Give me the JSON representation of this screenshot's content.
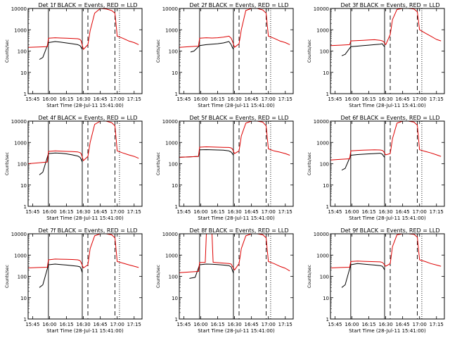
{
  "figure": {
    "xlabel": "Start Time (28-Jul-11 15:41:00)",
    "ylabel": "Counts/sec",
    "x_ticks": [
      "15:45",
      "16:00",
      "16:15",
      "16:30",
      "16:45",
      "17:00",
      "17:15"
    ],
    "y_ticks": [
      "1",
      "10",
      "100",
      "1000",
      "10000"
    ],
    "colors": {
      "events": "#000000",
      "lld": "#dd0000",
      "frame": "#000000"
    }
  },
  "chart_data": [
    {
      "type": "line",
      "title": "Det 1f BLACK = Events, RED = LLD",
      "xlabel": "Start Time (28-Jul-11 15:41:00)",
      "ylabel": "Counts/sec",
      "xlim": [
        "15:41",
        "17:22"
      ],
      "ylim": [
        1,
        10000
      ],
      "yscale": "log",
      "vlines_solid": [
        "15:59",
        "16:29"
      ],
      "vlines_dashed": [
        "16:34",
        "16:58"
      ],
      "vlines_dotted": [
        "17:02"
      ],
      "series": [
        {
          "name": "Events",
          "color": "#000000",
          "x": [
            "15:51",
            "15:54",
            "15:59",
            "16:05",
            "16:10",
            "16:15",
            "16:20",
            "16:25",
            "16:27",
            "16:28",
            "16:29"
          ],
          "y": [
            40,
            50,
            250,
            280,
            260,
            240,
            220,
            200,
            180,
            150,
            120
          ]
        },
        {
          "name": "LLD",
          "color": "#dd0000",
          "x": [
            "15:41",
            "15:50",
            "15:58",
            "15:59",
            "16:05",
            "16:10",
            "16:15",
            "16:20",
            "16:25",
            "16:27",
            "16:28",
            "16:30",
            "16:34",
            "16:36",
            "16:40",
            "16:45",
            "16:50",
            "16:55",
            "16:58",
            "17:00",
            "17:05",
            "17:10",
            "17:15",
            "17:19"
          ],
          "y": [
            150,
            155,
            160,
            400,
            420,
            410,
            400,
            390,
            380,
            350,
            300,
            120,
            200,
            900,
            6000,
            10000,
            9500,
            8000,
            6000,
            500,
            400,
            300,
            250,
            200
          ]
        }
      ]
    },
    {
      "type": "line",
      "title": "Det 2f BLACK = Events, RED = LLD",
      "xlabel": "Start Time (28-Jul-11 15:41:00)",
      "ylabel": "Counts/sec",
      "xlim": [
        "15:41",
        "17:22"
      ],
      "ylim": [
        1,
        10000
      ],
      "yscale": "log",
      "vlines_solid": [
        "15:59",
        "16:29"
      ],
      "vlines_dashed": [
        "16:34",
        "16:58"
      ],
      "vlines_dotted": [
        "17:02"
      ],
      "series": [
        {
          "name": "Events",
          "color": "#000000",
          "x": [
            "15:51",
            "15:54",
            "15:59",
            "16:05",
            "16:10",
            "16:15",
            "16:20",
            "16:25",
            "16:27",
            "16:28",
            "16:29"
          ],
          "y": [
            90,
            100,
            180,
            200,
            210,
            220,
            240,
            280,
            200,
            150,
            120
          ]
        },
        {
          "name": "LLD",
          "color": "#dd0000",
          "x": [
            "15:41",
            "15:50",
            "15:58",
            "15:59",
            "16:05",
            "16:10",
            "16:15",
            "16:20",
            "16:25",
            "16:27",
            "16:28",
            "16:30",
            "16:34",
            "16:36",
            "16:40",
            "16:45",
            "16:50",
            "16:55",
            "16:58",
            "17:00",
            "17:05",
            "17:10",
            "17:15",
            "17:19"
          ],
          "y": [
            150,
            160,
            170,
            400,
            420,
            410,
            420,
            450,
            500,
            400,
            300,
            150,
            220,
            1000,
            8000,
            10000,
            10000,
            8500,
            6000,
            500,
            400,
            300,
            250,
            200
          ]
        }
      ]
    },
    {
      "type": "line",
      "title": "Det 3f BLACK = Events, RED = LLD",
      "xlabel": "Start Time (28-Jul-11 15:41:00)",
      "ylabel": "Counts/sec",
      "xlim": [
        "15:41",
        "17:22"
      ],
      "ylim": [
        1,
        10000
      ],
      "yscale": "log",
      "vlines_solid": [
        "15:59",
        "16:29"
      ],
      "vlines_dashed": [
        "16:34",
        "16:58"
      ],
      "vlines_dotted": [
        "17:02"
      ],
      "series": [
        {
          "name": "Events",
          "color": "#000000",
          "x": [
            "15:51",
            "15:54",
            "15:59",
            "16:05",
            "16:10",
            "16:15",
            "16:20",
            "16:25",
            "16:27",
            "16:28",
            "16:29"
          ],
          "y": [
            60,
            70,
            160,
            170,
            180,
            190,
            200,
            210,
            220,
            180,
            160
          ]
        },
        {
          "name": "LLD",
          "color": "#dd0000",
          "x": [
            "15:41",
            "15:50",
            "15:58",
            "15:59",
            "16:05",
            "16:10",
            "16:15",
            "16:20",
            "16:25",
            "16:27",
            "16:28",
            "16:30",
            "16:34",
            "16:36",
            "16:40",
            "16:45",
            "16:50",
            "16:55",
            "16:58",
            "17:00",
            "17:05",
            "17:10",
            "17:15",
            "17:19"
          ],
          "y": [
            180,
            190,
            200,
            300,
            310,
            320,
            330,
            340,
            320,
            300,
            280,
            200,
            600,
            3000,
            9000,
            10000,
            10000,
            9500,
            7000,
            1000,
            700,
            500,
            350,
            300
          ]
        }
      ]
    },
    {
      "type": "line",
      "title": "Det 4f BLACK = Events, RED = LLD",
      "xlabel": "Start Time (28-Jul-11 15:41:00)",
      "ylabel": "Counts/sec",
      "xlim": [
        "15:41",
        "17:22"
      ],
      "ylim": [
        1,
        10000
      ],
      "yscale": "log",
      "vlines_solid": [
        "15:59",
        "16:29"
      ],
      "vlines_dashed": [
        "16:34",
        "16:58"
      ],
      "vlines_dotted": [
        "17:02"
      ],
      "series": [
        {
          "name": "Events",
          "color": "#000000",
          "x": [
            "15:51",
            "15:54",
            "15:59",
            "16:05",
            "16:10",
            "16:15",
            "16:20",
            "16:25",
            "16:27",
            "16:28",
            "16:29"
          ],
          "y": [
            30,
            40,
            300,
            320,
            310,
            290,
            260,
            230,
            200,
            160,
            120
          ]
        },
        {
          "name": "LLD",
          "color": "#dd0000",
          "x": [
            "15:41",
            "15:50",
            "15:58",
            "15:59",
            "16:05",
            "16:10",
            "16:15",
            "16:20",
            "16:25",
            "16:27",
            "16:28",
            "16:30",
            "16:34",
            "16:36",
            "16:40",
            "16:45",
            "16:50",
            "16:55",
            "16:58",
            "17:00",
            "17:05",
            "17:10",
            "17:15",
            "17:19"
          ],
          "y": [
            100,
            110,
            120,
            380,
            400,
            390,
            380,
            370,
            360,
            330,
            300,
            140,
            220,
            1000,
            7000,
            10000,
            10000,
            8500,
            6000,
            400,
            320,
            260,
            220,
            180
          ]
        }
      ]
    },
    {
      "type": "line",
      "title": "Det 5f BLACK = Events, RED = LLD",
      "xlabel": "Start Time (28-Jul-11 15:41:00)",
      "ylabel": "Counts/sec",
      "xlim": [
        "15:41",
        "17:22"
      ],
      "ylim": [
        1,
        10000
      ],
      "yscale": "log",
      "vlines_solid": [
        "15:59",
        "16:29"
      ],
      "vlines_dashed": [
        "16:34",
        "16:58"
      ],
      "vlines_dotted": [
        "17:02"
      ],
      "series": [
        {
          "name": "Events",
          "color": "#000000",
          "x": [
            "15:41",
            "15:50",
            "15:58",
            "15:59",
            "16:05",
            "16:10",
            "16:15",
            "16:20",
            "16:25",
            "16:27",
            "16:28",
            "16:29"
          ],
          "y": [
            200,
            210,
            220,
            450,
            460,
            450,
            440,
            430,
            400,
            350,
            300,
            250
          ]
        },
        {
          "name": "LLD",
          "color": "#dd0000",
          "x": [
            "15:41",
            "15:50",
            "15:58",
            "15:59",
            "16:05",
            "16:10",
            "16:15",
            "16:20",
            "16:25",
            "16:27",
            "16:28",
            "16:30",
            "16:34",
            "16:36",
            "16:40",
            "16:45",
            "16:50",
            "16:55",
            "16:58",
            "17:00",
            "17:05",
            "17:10",
            "17:15",
            "17:19"
          ],
          "y": [
            200,
            210,
            220,
            600,
            620,
            610,
            600,
            590,
            580,
            550,
            500,
            300,
            400,
            2000,
            8000,
            10000,
            10000,
            9000,
            6000,
            500,
            400,
            350,
            300,
            250
          ]
        }
      ]
    },
    {
      "type": "line",
      "title": "Det 6f BLACK = Events, RED = LLD",
      "xlabel": "Start Time (28-Jul-11 15:41:00)",
      "ylabel": "Counts/sec",
      "xlim": [
        "15:41",
        "17:22"
      ],
      "ylim": [
        1,
        10000
      ],
      "yscale": "log",
      "vlines_solid": [
        "15:59",
        "16:29"
      ],
      "vlines_dashed": [
        "16:34",
        "16:58"
      ],
      "vlines_dotted": [
        "17:02"
      ],
      "series": [
        {
          "name": "Events",
          "color": "#000000",
          "x": [
            "15:51",
            "15:54",
            "15:59",
            "16:05",
            "16:10",
            "16:15",
            "16:20",
            "16:25",
            "16:27",
            "16:28",
            "16:29"
          ],
          "y": [
            50,
            60,
            250,
            270,
            280,
            290,
            300,
            310,
            280,
            230,
            200
          ]
        },
        {
          "name": "LLD",
          "color": "#dd0000",
          "x": [
            "15:41",
            "15:50",
            "15:58",
            "15:59",
            "16:05",
            "16:10",
            "16:15",
            "16:20",
            "16:25",
            "16:27",
            "16:28",
            "16:30",
            "16:34",
            "16:36",
            "16:40",
            "16:45",
            "16:50",
            "16:55",
            "16:58",
            "17:00",
            "17:05",
            "17:10",
            "17:15",
            "17:19"
          ],
          "y": [
            150,
            160,
            170,
            400,
            420,
            430,
            440,
            450,
            440,
            420,
            380,
            260,
            300,
            1500,
            8000,
            10000,
            10000,
            9000,
            6500,
            450,
            380,
            320,
            260,
            220
          ]
        }
      ]
    },
    {
      "type": "line",
      "title": "Det 7f BLACK = Events, RED = LLD",
      "xlabel": "Start Time (28-Jul-11 15:41:00)",
      "ylabel": "Counts/sec",
      "xlim": [
        "15:41",
        "17:22"
      ],
      "ylim": [
        1,
        10000
      ],
      "yscale": "log",
      "vlines_solid": [
        "15:59",
        "16:29"
      ],
      "vlines_dashed": [
        "16:34",
        "16:58"
      ],
      "vlines_dotted": [
        "17:02"
      ],
      "series": [
        {
          "name": "Events",
          "color": "#000000",
          "x": [
            "15:51",
            "15:54",
            "15:59",
            "16:05",
            "16:10",
            "16:15",
            "16:20",
            "16:25",
            "16:27",
            "16:28",
            "16:29"
          ],
          "y": [
            30,
            40,
            350,
            380,
            360,
            340,
            320,
            300,
            280,
            220,
            150
          ]
        },
        {
          "name": "LLD",
          "color": "#dd0000",
          "x": [
            "15:41",
            "15:50",
            "15:58",
            "15:59",
            "16:05",
            "16:10",
            "16:15",
            "16:20",
            "16:25",
            "16:27",
            "16:28",
            "16:30",
            "16:34",
            "16:36",
            "16:40",
            "16:45",
            "16:50",
            "16:55",
            "16:58",
            "17:00",
            "17:05",
            "17:10",
            "17:15",
            "17:19"
          ],
          "y": [
            250,
            260,
            270,
            600,
            650,
            640,
            630,
            620,
            600,
            550,
            450,
            250,
            350,
            2000,
            8000,
            10000,
            10000,
            9000,
            6500,
            500,
            420,
            350,
            300,
            260
          ]
        }
      ]
    },
    {
      "type": "line",
      "title": "Det 8f BLACK = Events, RED = LLD",
      "xlabel": "Start Time (28-Jul-11 15:41:00)",
      "ylabel": "Counts/sec",
      "xlim": [
        "15:41",
        "17:22"
      ],
      "ylim": [
        1,
        10000
      ],
      "yscale": "log",
      "vlines_solid": [
        "15:59",
        "16:29"
      ],
      "vlines_dashed": [
        "16:34",
        "16:58"
      ],
      "vlines_dotted": [
        "17:02"
      ],
      "series": [
        {
          "name": "Events",
          "color": "#000000",
          "x": [
            "15:50",
            "15:55",
            "15:59",
            "16:05",
            "16:10",
            "16:15",
            "16:20",
            "16:25",
            "16:27",
            "16:28",
            "16:29"
          ],
          "y": [
            80,
            90,
            350,
            380,
            370,
            360,
            340,
            320,
            280,
            200,
            140
          ]
        },
        {
          "name": "LLD",
          "color": "#dd0000",
          "x": [
            "15:41",
            "15:50",
            "15:58",
            "15:59",
            "16:04",
            "16:05",
            "16:10",
            "16:11",
            "16:15",
            "16:20",
            "16:25",
            "16:27",
            "16:28",
            "16:30",
            "16:34",
            "16:36",
            "16:40",
            "16:45",
            "16:50",
            "16:55",
            "16:58",
            "17:00",
            "17:05",
            "17:10",
            "17:15",
            "17:19"
          ],
          "y": [
            150,
            160,
            170,
            450,
            450,
            10000,
            10000,
            460,
            440,
            420,
            400,
            380,
            300,
            200,
            400,
            2000,
            8000,
            10000,
            10000,
            9000,
            6500,
            500,
            400,
            300,
            240,
            180
          ]
        }
      ]
    },
    {
      "type": "line",
      "title": "Det 9f BLACK = Events, RED = LLD",
      "xlabel": "Start Time (28-Jul-11 15:41:00)",
      "ylabel": "Counts/sec",
      "xlim": [
        "15:41",
        "17:22"
      ],
      "ylim": [
        1,
        10000
      ],
      "yscale": "log",
      "vlines_solid": [
        "15:59",
        "16:29"
      ],
      "vlines_dashed": [
        "16:34",
        "16:58"
      ],
      "vlines_dotted": [
        "17:02"
      ],
      "series": [
        {
          "name": "Events",
          "color": "#000000",
          "x": [
            "15:51",
            "15:54",
            "15:59",
            "16:05",
            "16:10",
            "16:15",
            "16:20",
            "16:25",
            "16:27",
            "16:28",
            "16:29"
          ],
          "y": [
            30,
            40,
            350,
            400,
            380,
            360,
            340,
            320,
            300,
            250,
            200
          ]
        },
        {
          "name": "LLD",
          "color": "#dd0000",
          "x": [
            "15:41",
            "15:50",
            "15:58",
            "15:59",
            "16:05",
            "16:10",
            "16:15",
            "16:20",
            "16:25",
            "16:27",
            "16:28",
            "16:30",
            "16:34",
            "16:36",
            "16:40",
            "16:45",
            "16:50",
            "16:55",
            "16:58",
            "17:00",
            "17:05",
            "17:10",
            "17:15",
            "17:19"
          ],
          "y": [
            250,
            260,
            270,
            500,
            520,
            510,
            500,
            490,
            480,
            450,
            400,
            300,
            400,
            2500,
            9000,
            10000,
            10000,
            9500,
            7000,
            600,
            500,
            400,
            340,
            300
          ]
        }
      ]
    }
  ]
}
